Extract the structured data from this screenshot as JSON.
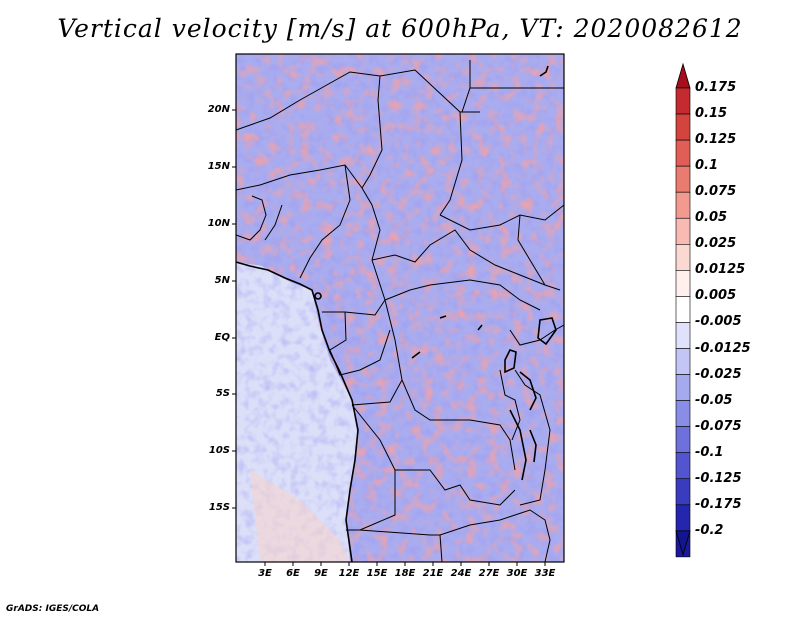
{
  "title": "Vertical velocity [m/s] at 600hPa, VT: 2020082612",
  "credit": "GrADS: IGES/COLA",
  "map": {
    "lat_labels": [
      "20N",
      "15N",
      "10N",
      "5N",
      "EQ",
      "5S",
      "10S",
      "15S"
    ],
    "lon_labels": [
      "3E",
      "6E",
      "9E",
      "12E",
      "15E",
      "18E",
      "21E",
      "24E",
      "27E",
      "30E",
      "33E"
    ],
    "field": "vertical velocity",
    "units": "m/s",
    "level": "600hPa"
  },
  "colorbar": {
    "labels": [
      "0.175",
      "0.15",
      "0.125",
      "0.1",
      "0.075",
      "0.05",
      "0.025",
      "0.0125",
      "0.005",
      "-0.005",
      "-0.0125",
      "-0.025",
      "-0.05",
      "-0.075",
      "-0.1",
      "-0.125",
      "-0.175",
      "-0.2"
    ],
    "colors": [
      "#b0141e",
      "#c42a2f",
      "#d4443f",
      "#e05e55",
      "#ea7b70",
      "#f29a90",
      "#f8bab2",
      "#fcd8d3",
      "#fff0ee",
      "#ffffff",
      "#e0e2fb",
      "#c3c6f5",
      "#a5a9ee",
      "#8a8de6",
      "#6e70dc",
      "#5355d0",
      "#3a3cc0",
      "#2426ad",
      "#1a1a9a"
    ],
    "top_color": "#a50e1a",
    "bottom_color": "#14148e"
  }
}
